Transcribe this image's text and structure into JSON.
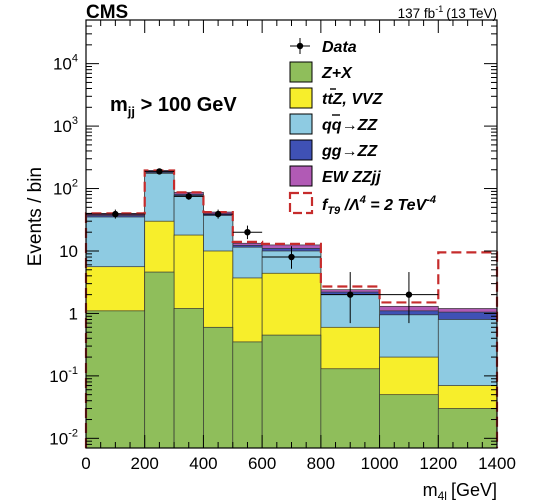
{
  "header": {
    "experiment": "CMS",
    "lumi_value": "137 fb",
    "lumi_exp": "-1",
    "lumi_energy": "(13 TeV)"
  },
  "selection": {
    "main": "m",
    "sub": "jj",
    "rest": " > 100 GeV"
  },
  "axes": {
    "ylabel": "Events / bin",
    "xlabel_main": "m",
    "xlabel_sub": "4l",
    "xlabel_unit": "[GeV]"
  },
  "legend": {
    "data": "Data",
    "zx": "Z+X",
    "ttz_t1": "t",
    "ttz_t2": "t",
    "ttz_rest": "Z, VVZ",
    "qqzz_q1": "q",
    "qqzz_q2": "q",
    "qqzz_rest": "→ZZ",
    "ggzz": "gg→ZZ",
    "ewzz": "EW ZZjj",
    "sig_f": "f",
    "sig_sub": "T9",
    "sig_mid": " /Λ",
    "sig_exp1": "4",
    "sig_eq": " = 2 TeV",
    "sig_exp2": "-4"
  },
  "colors": {
    "zx": "#8fbe5b",
    "ttz": "#f7ee2b",
    "qqzz": "#8ecbe2",
    "ggzz": "#3f51b5",
    "ewzz": "#b15ab5",
    "signal": "#c62c2c",
    "data": "#000000"
  },
  "chart_data": {
    "type": "bar",
    "stacked": true,
    "log_y": true,
    "bin_edges": [
      0,
      200,
      300,
      400,
      500,
      600,
      800,
      1000,
      1200,
      1400
    ],
    "xlim": [
      0,
      1400
    ],
    "ylim": [
      0.007,
      50000
    ],
    "x_ticks": [
      0,
      200,
      400,
      600,
      800,
      1000,
      1200,
      1400
    ],
    "y_ticks": [
      {
        "v": 0.01,
        "base": "10",
        "exp": "-2"
      },
      {
        "v": 0.1,
        "base": "10",
        "exp": "-1"
      },
      {
        "v": 1,
        "base": "1",
        "exp": ""
      },
      {
        "v": 10,
        "base": "10",
        "exp": ""
      },
      {
        "v": 100,
        "base": "10",
        "exp": "2"
      },
      {
        "v": 1000,
        "base": "10",
        "exp": "3"
      },
      {
        "v": 10000,
        "base": "10",
        "exp": "4"
      }
    ],
    "series": [
      {
        "name": "Z+X",
        "key": "zx",
        "values": [
          1.1,
          4.6,
          1.2,
          0.6,
          0.35,
          0.45,
          0.13,
          0.05,
          0.03
        ]
      },
      {
        "name": "ttZ, VVZ",
        "key": "ttz",
        "values": [
          5.6,
          30,
          18,
          10,
          3.7,
          4.4,
          0.6,
          0.2,
          0.07
        ]
      },
      {
        "name": "qq→ZZ",
        "key": "qqzz",
        "values": [
          35,
          175,
          77,
          37,
          11.5,
          10,
          2.0,
          0.95,
          0.8
        ]
      },
      {
        "name": "gg→ZZ",
        "key": "ggzz",
        "values": [
          37,
          182,
          81,
          39,
          12.3,
          11,
          2.2,
          1.1,
          1.05
        ]
      },
      {
        "name": "EW ZZjj",
        "key": "ewzz",
        "values": [
          40,
          195,
          87,
          42,
          13.3,
          12.5,
          2.4,
          1.3,
          1.2
        ]
      }
    ],
    "signal": {
      "name": "fT9/Λ^4 = 2 TeV^-4",
      "values": [
        40,
        195,
        87,
        42,
        14,
        13,
        2.7,
        1.5,
        9.5
      ]
    },
    "data": {
      "name": "Data",
      "x": [
        100,
        250,
        350,
        450,
        550,
        700,
        900,
        1100
      ],
      "y": [
        39,
        188,
        75,
        39,
        20,
        8,
        2,
        2
      ],
      "err_lo": [
        6,
        14,
        9,
        6,
        4.5,
        2.8,
        1.3,
        1.3
      ],
      "err_hi": [
        7,
        15,
        10,
        7,
        5.5,
        3.9,
        2.6,
        2.6
      ]
    }
  }
}
